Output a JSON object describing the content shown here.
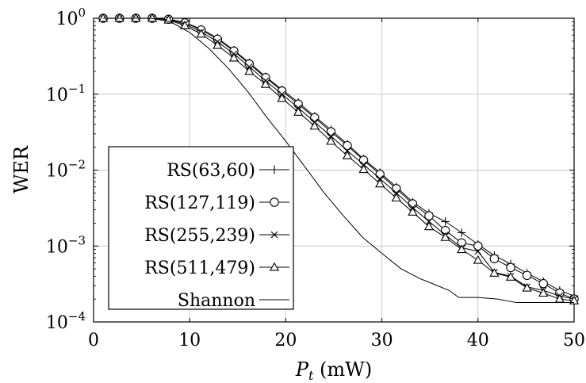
{
  "chart_data": {
    "type": "line",
    "xlabel": "P_t (mW)",
    "xlabel_main": "P",
    "xlabel_sub": "t",
    "xlabel_unit": " (mW)",
    "ylabel": "WER",
    "yscale": "log",
    "xlim": [
      0,
      50
    ],
    "ylim": [
      0.0001,
      1
    ],
    "grid": true,
    "legend_position": "bottom-left",
    "x_ticks": [
      "0",
      "10",
      "20",
      "30",
      "40",
      "50"
    ],
    "y_ticks": [
      {
        "base": "10",
        "exp": "0",
        "value": 1
      },
      {
        "base": "10",
        "exp": "−1",
        "value": 0.1
      },
      {
        "base": "10",
        "exp": "−2",
        "value": 0.01
      },
      {
        "base": "10",
        "exp": "−3",
        "value": 0.001
      },
      {
        "base": "10",
        "exp": "−4",
        "value": 0.0001
      }
    ],
    "series": [
      {
        "name": "RS(63,60)",
        "marker": "plus",
        "x": [
          1,
          2.7,
          4.4,
          6.1,
          7.8,
          9.5,
          11.2,
          12.9,
          14.6,
          16.2,
          17.9,
          19.6,
          21.3,
          23,
          24.7,
          26.4,
          28.1,
          29.8,
          31.5,
          33.2,
          34.9,
          36.6,
          38.3,
          40,
          41.7,
          43.4,
          45.1,
          46.8,
          48.5,
          50
        ],
        "y": [
          1,
          1,
          1,
          1,
          0.98,
          0.88,
          0.72,
          0.55,
          0.38,
          0.26,
          0.17,
          0.115,
          0.078,
          0.051,
          0.034,
          0.022,
          0.014,
          0.0093,
          0.006,
          0.0038,
          0.0027,
          0.0021,
          0.0015,
          0.00105,
          0.00075,
          0.00058,
          0.00044,
          0.00034,
          0.00026,
          0.00022
        ]
      },
      {
        "name": "RS(127,119)",
        "marker": "circle",
        "x": [
          1,
          2.7,
          4.4,
          6.1,
          7.8,
          9.5,
          11.2,
          12.9,
          14.6,
          16.2,
          17.9,
          19.6,
          21.3,
          23,
          24.7,
          26.4,
          28.1,
          29.8,
          31.5,
          33.2,
          34.9,
          36.6,
          38.3,
          40,
          41.7,
          43.4,
          45.1,
          46.8,
          48.5,
          50
        ],
        "y": [
          1,
          1,
          1,
          1,
          0.97,
          0.87,
          0.7,
          0.53,
          0.37,
          0.25,
          0.165,
          0.11,
          0.074,
          0.049,
          0.032,
          0.021,
          0.0135,
          0.0088,
          0.0057,
          0.0036,
          0.0025,
          0.0016,
          0.0011,
          0.001,
          0.00068,
          0.00052,
          0.00041,
          0.00032,
          0.00024,
          0.0002
        ]
      },
      {
        "name": "RS(255,239)",
        "marker": "cross",
        "x": [
          1,
          2.7,
          4.4,
          6.1,
          7.8,
          9.5,
          11.2,
          12.9,
          14.6,
          16.2,
          17.9,
          19.6,
          21.3,
          23,
          24.7,
          26.4,
          28.1,
          29.8,
          31.5,
          33.2,
          34.9,
          36.6,
          38.3,
          40,
          41.7,
          43.4,
          45.1,
          46.8,
          48.5,
          50
        ],
        "y": [
          1,
          1,
          1,
          1,
          0.96,
          0.84,
          0.66,
          0.49,
          0.34,
          0.23,
          0.15,
          0.1,
          0.066,
          0.043,
          0.028,
          0.018,
          0.0118,
          0.0077,
          0.005,
          0.0032,
          0.0021,
          0.0014,
          0.00095,
          0.00085,
          0.00045,
          0.0004,
          0.00029,
          0.00026,
          0.00022,
          0.0002
        ]
      },
      {
        "name": "RS(511,479)",
        "marker": "triangle",
        "x": [
          1,
          2.7,
          4.4,
          6.1,
          7.8,
          9.5,
          11.2,
          12.9,
          14.6,
          16.2,
          17.9,
          19.6,
          21.3,
          23,
          24.7,
          26.4,
          28.1,
          29.8,
          31.5,
          33.2,
          34.9,
          36.6,
          38.3,
          40,
          41.7,
          43.4,
          45.1,
          46.8,
          48.5,
          50
        ],
        "y": [
          1,
          1,
          1,
          1,
          0.95,
          0.8,
          0.62,
          0.44,
          0.3,
          0.2,
          0.135,
          0.088,
          0.058,
          0.038,
          0.024,
          0.0155,
          0.0102,
          0.0066,
          0.0043,
          0.0028,
          0.0018,
          0.0013,
          0.0009,
          0.00065,
          0.00044,
          0.00039,
          0.00028,
          0.00024,
          0.0002,
          0.00019
        ]
      },
      {
        "name": "Shannon",
        "marker": "none",
        "x": [
          1,
          6,
          8,
          10,
          12,
          14,
          16,
          18,
          20,
          22,
          24,
          26,
          28,
          30,
          32,
          34,
          35,
          37,
          38,
          40,
          42,
          43,
          44,
          46,
          48,
          50
        ],
        "y": [
          1,
          1,
          0.9,
          0.65,
          0.4,
          0.22,
          0.11,
          0.05,
          0.024,
          0.011,
          0.005,
          0.0025,
          0.0013,
          0.0008,
          0.0005,
          0.00037,
          0.00033,
          0.00026,
          0.00021,
          0.00021,
          0.0002,
          0.00019,
          0.00018,
          0.00018,
          0.00018,
          0.00018
        ]
      }
    ]
  }
}
